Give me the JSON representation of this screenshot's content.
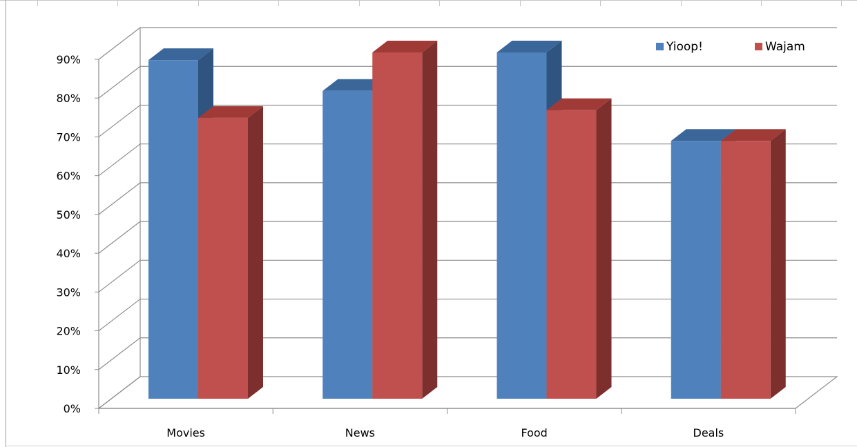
{
  "chart_data": {
    "type": "bar",
    "style": "3d-clustered-column",
    "categories": [
      "Movies",
      "News",
      "Food",
      "Deals"
    ],
    "series": [
      {
        "name": "Yioop!",
        "values": [
          88,
          80,
          90,
          67
        ],
        "color": "#4f81bd",
        "top_color": "#3a6699",
        "side_color": "#2f5480"
      },
      {
        "name": "Wajam",
        "values": [
          73,
          90,
          75,
          67
        ],
        "color": "#c0504d",
        "top_color": "#a03a37",
        "side_color": "#7d2f2d"
      }
    ],
    "ylim": [
      0,
      90
    ],
    "y_ticks": [
      "0%",
      "10%",
      "20%",
      "30%",
      "40%",
      "50%",
      "60%",
      "70%",
      "80%",
      "90%"
    ],
    "grid": true,
    "legend_position": "top-right",
    "title": "",
    "xlabel": "",
    "ylabel": ""
  }
}
